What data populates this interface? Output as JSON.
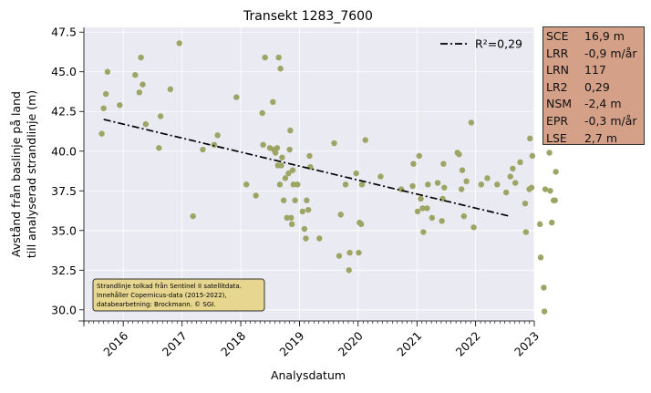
{
  "chart_data": {
    "type": "scatter",
    "title": "Transekt 1283_7600",
    "xlabel": "Analysdatum",
    "ylabel_lines": [
      "Avstånd från baslinje på land",
      "till analyserad strandlinje (m)"
    ],
    "xlim": [
      "2015-05-01",
      "2023-01-01"
    ],
    "ylim": [
      29.3,
      47.8
    ],
    "yticks": [
      "30.0",
      "32.5",
      "35.0",
      "37.5",
      "40.0",
      "42.5",
      "45.0",
      "47.5"
    ],
    "xticks": [
      "2016",
      "2017",
      "2018",
      "2019",
      "2020",
      "2021",
      "2022",
      "2023"
    ],
    "grid": true,
    "legend_position": "top-right",
    "colors": {
      "points": "#9ea564",
      "trend": "#000000",
      "plot_bg": "#eaeaf2",
      "annotation_bg": "#e6d690",
      "stats_bg": "#d4a088"
    },
    "trend": {
      "label": "R²=0,29",
      "start": [
        "2015-09-01",
        42.0
      ],
      "end": [
        "2022-08-01",
        35.9
      ]
    },
    "annotation": [
      "Strandlinje tolkad från Sentinel II satellitdata.",
      "Innehåller Copernicus-data (2015-2022),",
      "databearbetning: Brockmann. © SGI."
    ],
    "points": [
      [
        "2015-08-20",
        41.1
      ],
      [
        "2015-09-01",
        42.7
      ],
      [
        "2015-09-15",
        43.6
      ],
      [
        "2015-09-25",
        45.0
      ],
      [
        "2015-12-10",
        42.9
      ],
      [
        "2016-03-15",
        44.8
      ],
      [
        "2016-04-10",
        43.7
      ],
      [
        "2016-04-20",
        45.9
      ],
      [
        "2016-05-01",
        44.2
      ],
      [
        "2016-05-20",
        41.7
      ],
      [
        "2016-08-10",
        40.2
      ],
      [
        "2016-08-20",
        42.2
      ],
      [
        "2016-10-20",
        43.9
      ],
      [
        "2016-12-15",
        46.8
      ],
      [
        "2017-03-10",
        35.9
      ],
      [
        "2017-05-10",
        40.1
      ],
      [
        "2017-07-20",
        40.4
      ],
      [
        "2017-08-10",
        41.0
      ],
      [
        "2017-12-05",
        43.4
      ],
      [
        "2018-02-05",
        37.9
      ],
      [
        "2018-04-05",
        37.2
      ],
      [
        "2018-05-15",
        42.4
      ],
      [
        "2018-05-20",
        40.4
      ],
      [
        "2018-06-01",
        45.9
      ],
      [
        "2018-07-01",
        40.2
      ],
      [
        "2018-07-20",
        43.1
      ],
      [
        "2018-07-25",
        40.1
      ],
      [
        "2018-08-05",
        39.9
      ],
      [
        "2018-08-15",
        40.2
      ],
      [
        "2018-08-20",
        39.1
      ],
      [
        "2018-08-25",
        45.9
      ],
      [
        "2018-09-01",
        37.9
      ],
      [
        "2018-09-05",
        45.2
      ],
      [
        "2018-09-10",
        39.1
      ],
      [
        "2018-09-15",
        39.6
      ],
      [
        "2018-09-25",
        36.9
      ],
      [
        "2018-10-05",
        38.3
      ],
      [
        "2018-10-15",
        35.8
      ],
      [
        "2018-10-25",
        38.6
      ],
      [
        "2018-11-01",
        40.1
      ],
      [
        "2018-11-05",
        41.3
      ],
      [
        "2018-11-10",
        35.8
      ],
      [
        "2018-11-15",
        35.4
      ],
      [
        "2018-11-20",
        38.8
      ],
      [
        "2018-11-25",
        37.9
      ],
      [
        "2018-12-05",
        36.9
      ],
      [
        "2018-12-20",
        37.9
      ],
      [
        "2019-01-20",
        36.2
      ],
      [
        "2019-02-01",
        35.1
      ],
      [
        "2019-02-10",
        34.5
      ],
      [
        "2019-02-15",
        36.9
      ],
      [
        "2019-02-25",
        36.3
      ],
      [
        "2019-03-05",
        39.7
      ],
      [
        "2019-03-10",
        39.0
      ],
      [
        "2019-05-05",
        34.5
      ],
      [
        "2019-08-05",
        40.5
      ],
      [
        "2019-09-05",
        33.4
      ],
      [
        "2019-09-15",
        36.0
      ],
      [
        "2019-10-15",
        37.9
      ],
      [
        "2019-11-05",
        32.5
      ],
      [
        "2019-11-10",
        33.6
      ],
      [
        "2019-12-20",
        38.6
      ],
      [
        "2020-01-05",
        33.6
      ],
      [
        "2020-01-10",
        35.5
      ],
      [
        "2020-01-20",
        35.4
      ],
      [
        "2020-01-25",
        37.9
      ],
      [
        "2020-02-15",
        40.7
      ],
      [
        "2020-05-20",
        38.4
      ],
      [
        "2020-09-25",
        37.6
      ],
      [
        "2020-12-05",
        37.8
      ],
      [
        "2020-12-10",
        39.2
      ],
      [
        "2021-01-05",
        36.2
      ],
      [
        "2021-01-15",
        39.7
      ],
      [
        "2021-01-25",
        37.0
      ],
      [
        "2021-02-05",
        36.4
      ],
      [
        "2021-02-10",
        34.9
      ],
      [
        "2021-03-05",
        36.4
      ],
      [
        "2021-03-10",
        37.9
      ],
      [
        "2021-04-05",
        35.8
      ],
      [
        "2021-05-10",
        38.0
      ],
      [
        "2021-06-05",
        35.6
      ],
      [
        "2021-06-10",
        37.0
      ],
      [
        "2021-06-15",
        39.2
      ],
      [
        "2021-06-20",
        37.7
      ],
      [
        "2021-09-10",
        39.9
      ],
      [
        "2021-09-20",
        39.8
      ],
      [
        "2021-10-05",
        37.6
      ],
      [
        "2021-10-10",
        38.8
      ],
      [
        "2021-10-20",
        35.9
      ],
      [
        "2021-11-05",
        38.1
      ],
      [
        "2021-12-05",
        41.8
      ],
      [
        "2021-12-20",
        35.2
      ],
      [
        "2022-02-05",
        37.9
      ],
      [
        "2022-03-15",
        38.3
      ],
      [
        "2022-05-15",
        37.9
      ],
      [
        "2022-07-10",
        37.4
      ],
      [
        "2022-08-05",
        38.4
      ],
      [
        "2022-08-20",
        38.9
      ],
      [
        "2022-09-05",
        38.0
      ],
      [
        "2022-10-05",
        39.3
      ],
      [
        "2022-11-05",
        36.7
      ],
      [
        "2022-11-10",
        34.9
      ],
      [
        "2022-12-01",
        37.6
      ],
      [
        "2022-12-05",
        40.8
      ],
      [
        "2022-12-15",
        37.7
      ],
      [
        "2022-12-20",
        39.7
      ],
      [
        "2023-02-05",
        35.4
      ],
      [
        "2023-02-10",
        33.3
      ],
      [
        "2023-03-01",
        31.4
      ],
      [
        "2023-03-05",
        29.9
      ],
      [
        "2023-03-10",
        37.6
      ],
      [
        "2023-04-05",
        39.9
      ],
      [
        "2023-04-10",
        37.5
      ],
      [
        "2023-04-20",
        35.5
      ],
      [
        "2023-05-01",
        36.9
      ],
      [
        "2023-05-10",
        36.9
      ],
      [
        "2023-05-15",
        38.7
      ]
    ]
  },
  "stats": [
    {
      "key": "SCE",
      "value": "16,9 m"
    },
    {
      "key": "LRR",
      "value": "-0,9 m/år"
    },
    {
      "key": "LRN",
      "value": "117"
    },
    {
      "key": "LR2",
      "value": "0,29"
    },
    {
      "key": "NSM",
      "value": "-2,4 m"
    },
    {
      "key": "EPR",
      "value": "-0,3 m/år"
    },
    {
      "key": "LSE",
      "value": "2,7 m"
    }
  ]
}
